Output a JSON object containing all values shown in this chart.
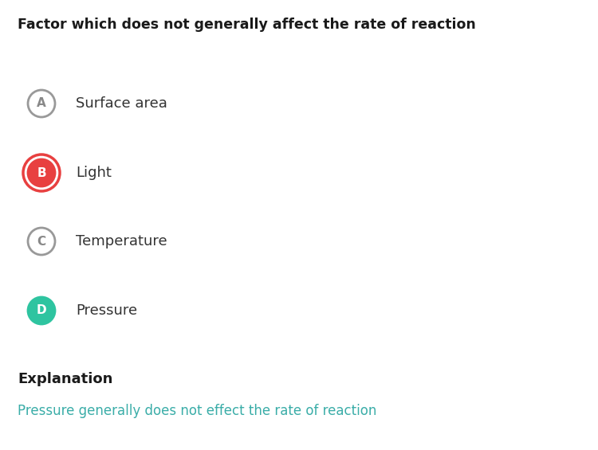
{
  "title": "Factor which does not generally affect the rate of reaction",
  "title_fontsize": 12.5,
  "title_color": "#1a1a1a",
  "title_fontweight": "bold",
  "options": [
    {
      "label": "A",
      "text": "Surface area",
      "circle_facecolor": "#ffffff",
      "circle_edgecolor": "#999999",
      "label_color": "#888888",
      "text_color": "#333333",
      "ring": false
    },
    {
      "label": "B",
      "text": "Light",
      "circle_facecolor": "#e84040",
      "circle_edgecolor": "#e84040",
      "label_color": "#ffffff",
      "text_color": "#333333",
      "ring": true,
      "ring_color": "#e84040"
    },
    {
      "label": "C",
      "text": "Temperature",
      "circle_facecolor": "#ffffff",
      "circle_edgecolor": "#999999",
      "label_color": "#888888",
      "text_color": "#333333",
      "ring": false
    },
    {
      "label": "D",
      "text": "Pressure",
      "circle_facecolor": "#2ec4a0",
      "circle_edgecolor": "#2ec4a0",
      "label_color": "#ffffff",
      "text_color": "#333333",
      "ring": false
    }
  ],
  "explanation_title": "Explanation",
  "explanation_text": "Pressure generally does not effect the rate of reaction",
  "explanation_title_color": "#1a1a1a",
  "explanation_title_fontweight": "bold",
  "explanation_text_color": "#3aada8",
  "background_color": "#ffffff",
  "fig_width": 7.5,
  "fig_height": 5.65,
  "dpi": 100
}
